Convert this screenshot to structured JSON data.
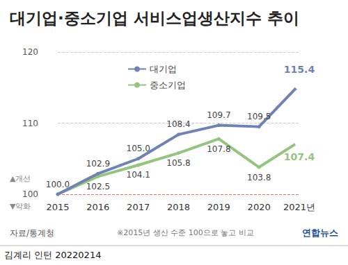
{
  "chart_data": {
    "type": "line",
    "title": "대기업·중소기업 서비스업생산지수 추이",
    "categories": [
      "2015",
      "2016",
      "2017",
      "2018",
      "2019",
      "2020",
      "2021년"
    ],
    "series": [
      {
        "name": "대기업",
        "color": "#6f82b4",
        "marker": "circle",
        "values": [
          100,
          102.9,
          105,
          108.4,
          109.7,
          109.5,
          115.4
        ],
        "value_labels": [
          "100.0",
          "102.9",
          "105.0",
          "108.4",
          "109.7",
          "109.5",
          "115.4"
        ]
      },
      {
        "name": "중소기업",
        "color": "#94c57f",
        "marker": "circle",
        "values": [
          100,
          102.5,
          104.1,
          105.8,
          107.8,
          103.8,
          107.4
        ],
        "value_labels": [
          null,
          "102.5",
          "104.1",
          "105.8",
          "107.8",
          "103.8",
          "107.4"
        ]
      }
    ],
    "ylim": [
      100,
      120
    ],
    "yticks": [
      100,
      110,
      120
    ],
    "grid": true,
    "legend": "upper left",
    "data_labels": true,
    "annotations": [
      "▲개선",
      "▼악화",
      "자료/통계청",
      "※2015년 생산 수준 100으로 놓고 비교",
      "연합뉴스",
      "김계리 인턴 20220214"
    ]
  }
}
